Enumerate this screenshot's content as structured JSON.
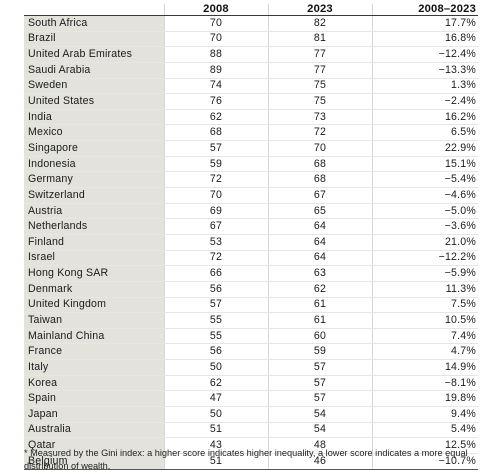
{
  "table": {
    "headers": {
      "country": "",
      "year_2008": "2008",
      "year_2023": "2023",
      "change": "2008–2023"
    },
    "rows": [
      {
        "country": "South Africa",
        "y2008": "70",
        "y2023": "82",
        "change": "17.7%"
      },
      {
        "country": "Brazil",
        "y2008": "70",
        "y2023": "81",
        "change": "16.8%"
      },
      {
        "country": "United Arab Emirates",
        "y2008": "88",
        "y2023": "77",
        "change": "−12.4%"
      },
      {
        "country": "Saudi Arabia",
        "y2008": "89",
        "y2023": "77",
        "change": "−13.3%"
      },
      {
        "country": "Sweden",
        "y2008": "74",
        "y2023": "75",
        "change": "1.3%"
      },
      {
        "country": "United States",
        "y2008": "76",
        "y2023": "75",
        "change": "−2.4%"
      },
      {
        "country": "India",
        "y2008": "62",
        "y2023": "73",
        "change": "16.2%"
      },
      {
        "country": "Mexico",
        "y2008": "68",
        "y2023": "72",
        "change": "6.5%"
      },
      {
        "country": "Singapore",
        "y2008": "57",
        "y2023": "70",
        "change": "22.9%"
      },
      {
        "country": "Indonesia",
        "y2008": "59",
        "y2023": "68",
        "change": "15.1%"
      },
      {
        "country": "Germany",
        "y2008": "72",
        "y2023": "68",
        "change": "−5.4%"
      },
      {
        "country": "Switzerland",
        "y2008": "70",
        "y2023": "67",
        "change": "−4.6%"
      },
      {
        "country": "Austria",
        "y2008": "69",
        "y2023": "65",
        "change": "−5.0%"
      },
      {
        "country": "Netherlands",
        "y2008": "67",
        "y2023": "64",
        "change": "−3.6%"
      },
      {
        "country": "Finland",
        "y2008": "53",
        "y2023": "64",
        "change": "21.0%"
      },
      {
        "country": "Israel",
        "y2008": "72",
        "y2023": "64",
        "change": "−12.2%"
      },
      {
        "country": "Hong Kong SAR",
        "y2008": "66",
        "y2023": "63",
        "change": "−5.9%"
      },
      {
        "country": "Denmark",
        "y2008": "56",
        "y2023": "62",
        "change": "11.3%"
      },
      {
        "country": "United Kingdom",
        "y2008": "57",
        "y2023": "61",
        "change": "7.5%"
      },
      {
        "country": "Taiwan",
        "y2008": "55",
        "y2023": "61",
        "change": "10.5%"
      },
      {
        "country": "Mainland China",
        "y2008": "55",
        "y2023": "60",
        "change": "7.4%"
      },
      {
        "country": "France",
        "y2008": "56",
        "y2023": "59",
        "change": "4.7%"
      },
      {
        "country": "Italy",
        "y2008": "50",
        "y2023": "57",
        "change": "14.9%"
      },
      {
        "country": "Korea",
        "y2008": "62",
        "y2023": "57",
        "change": "−8.1%"
      },
      {
        "country": "Spain",
        "y2008": "47",
        "y2023": "57",
        "change": "19.8%"
      },
      {
        "country": "Japan",
        "y2008": "50",
        "y2023": "54",
        "change": "9.4%"
      },
      {
        "country": "Australia",
        "y2008": "51",
        "y2023": "54",
        "change": "5.4%"
      },
      {
        "country": "Qatar",
        "y2008": "43",
        "y2023": "48",
        "change": "12.5%"
      },
      {
        "country": "Belgium",
        "y2008": "51",
        "y2023": "46",
        "change": "−10.7%"
      }
    ]
  },
  "footnote": "* Measured by the Gini index: a higher score indicates higher inequality, a lower score indicates a more equal distribution of wealth.",
  "colors": {
    "country_cell_bg": "#e3e3dc",
    "rule": "#3a3a3a"
  }
}
